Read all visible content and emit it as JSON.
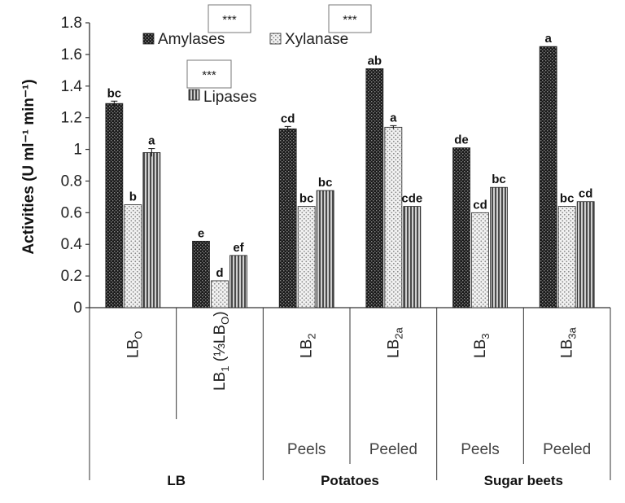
{
  "chart_data": {
    "type": "bar",
    "ylabel": "Activities (U ml⁻¹ min⁻¹)",
    "ylim": [
      0,
      1.8
    ],
    "yticks": [
      "0",
      "0.2",
      "0.4",
      "0.6",
      "0.8",
      "1",
      "1.2",
      "1.4",
      "1.6",
      "1.8"
    ],
    "categories": [
      {
        "main": "LB",
        "sub": "O",
        "tail": ""
      },
      {
        "main": "LB",
        "sub": "1",
        "tail": " (⅓LB",
        "sub2": "O",
        "close": ")"
      },
      {
        "main": "LB",
        "sub": "2",
        "tail": ""
      },
      {
        "main": "LB",
        "sub": "2a",
        "tail": ""
      },
      {
        "main": "LB",
        "sub": "3",
        "tail": ""
      },
      {
        "main": "LB",
        "sub": "3a",
        "tail": ""
      }
    ],
    "subgroups": [
      "",
      "",
      "Peels",
      "Peeled",
      "Peels",
      "Peeled"
    ],
    "groups": [
      {
        "label": "LB"
      },
      {
        "label": "Potatoes"
      },
      {
        "label": "Sugar beets"
      }
    ],
    "series": [
      {
        "name": "Amylases",
        "values": [
          1.29,
          0.42,
          1.13,
          1.51,
          1.01,
          1.65
        ],
        "letters": [
          "bc",
          "e",
          "cd",
          "ab",
          "de",
          "a"
        ],
        "errors": [
          0.015,
          0.0,
          0.015,
          0.0,
          0.0,
          0.0
        ]
      },
      {
        "name": "Xylanase",
        "values": [
          0.65,
          0.17,
          0.64,
          1.14,
          0.6,
          0.64
        ],
        "letters": [
          "b",
          "d",
          "bc",
          "a",
          "cd",
          "bc"
        ],
        "errors": [
          0.0,
          0.0,
          0.0,
          0.01,
          0.0,
          0.0
        ]
      },
      {
        "name": "Lipases",
        "values": [
          0.98,
          0.33,
          0.74,
          0.64,
          0.76,
          0.67
        ],
        "letters": [
          "a",
          "ef",
          "bc",
          "cde",
          "bc",
          "cd"
        ],
        "errors": [
          0.025,
          0.0,
          0.0,
          0.0,
          0.0,
          0.0
        ]
      }
    ],
    "significance": [
      "***",
      "***",
      "***"
    ],
    "legend_position": "top"
  }
}
